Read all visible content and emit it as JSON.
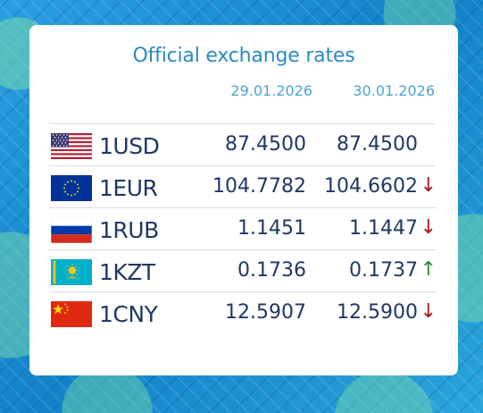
{
  "title": "Official exchange rates",
  "dates": [
    "29.01.2026",
    "30.01.2026"
  ],
  "colors": {
    "title": "#2a8ac4",
    "value": "#1f3864",
    "down": "#b0121a",
    "up": "#2e8a2e"
  },
  "rows": [
    {
      "code": "1USD",
      "flag_icon": "us-flag-icon",
      "rate_prev": "87.4500",
      "rate_curr": "87.4500",
      "arrow": "",
      "trend": "none"
    },
    {
      "code": "1EUR",
      "flag_icon": "eu-flag-icon",
      "rate_prev": "104.7782",
      "rate_curr": "104.6602",
      "arrow": "↓",
      "trend": "down"
    },
    {
      "code": "1RUB",
      "flag_icon": "ru-flag-icon",
      "rate_prev": "1.1451",
      "rate_curr": "1.1447",
      "arrow": "↓",
      "trend": "down"
    },
    {
      "code": "1KZT",
      "flag_icon": "kz-flag-icon",
      "rate_prev": "0.1736",
      "rate_curr": "0.1737",
      "arrow": "↑",
      "trend": "up"
    },
    {
      "code": "1CNY",
      "flag_icon": "cn-flag-icon",
      "rate_prev": "12.5907",
      "rate_curr": "12.5900",
      "arrow": "↓",
      "trend": "down"
    }
  ]
}
